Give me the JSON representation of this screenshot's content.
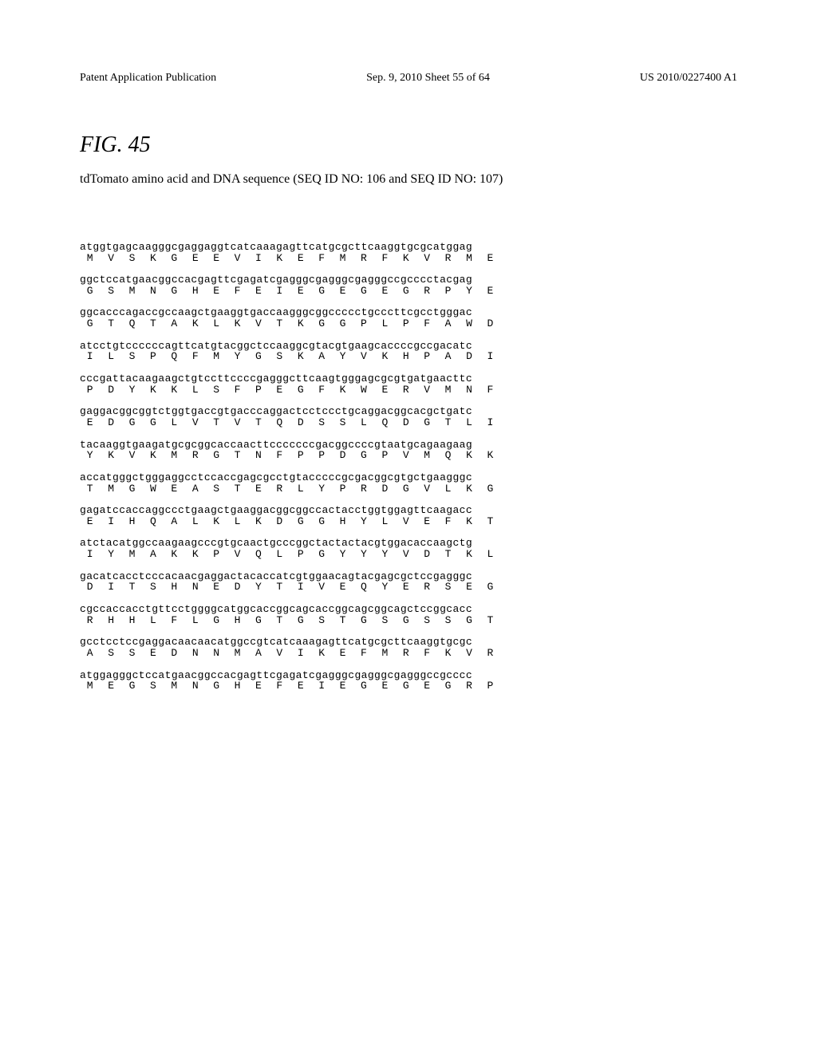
{
  "header": {
    "left": "Patent Application Publication",
    "center": "Sep. 9, 2010  Sheet 55 of 64",
    "right": "US 2010/0227400 A1"
  },
  "figure": {
    "label": "FIG. 45",
    "title": "tdTomato amino acid and DNA sequence (SEQ ID NO: 106 and SEQ ID NO: 107)"
  },
  "sequence": [
    {
      "dna": "atggtgagcaagggcgaggaggtcatcaaagagttcatgcgcttcaaggtgcgcatggag",
      "aa": " M  V  S  K  G  E  E  V  I  K  E  F  M  R  F  K  V  R  M  E"
    },
    {
      "dna": "ggctccatgaacggccacgagttcgagatcgagggcgagggcgagggccgcccctacgag",
      "aa": " G  S  M  N  G  H  E  F  E  I  E  G  E  G  E  G  R  P  Y  E"
    },
    {
      "dna": "ggcacccagaccgccaagctgaaggtgaccaagggcggccccctgcccttcgcctgggac",
      "aa": " G  T  Q  T  A  K  L  K  V  T  K  G  G  P  L  P  F  A  W  D"
    },
    {
      "dna": "atcctgtccccccagttcatgtacggctccaaggcgtacgtgaagcaccccgccgacatc",
      "aa": " I  L  S  P  Q  F  M  Y  G  S  K  A  Y  V  K  H  P  A  D  I"
    },
    {
      "dna": "cccgattacaagaagctgtccttccccgagggcttcaagtgggagcgcgtgatgaacttc",
      "aa": " P  D  Y  K  K  L  S  F  P  E  G  F  K  W  E  R  V  M  N  F"
    },
    {
      "dna": "gaggacggcggtctggtgaccgtgacccaggactcctccctgcaggacggcacgctgatc",
      "aa": " E  D  G  G  L  V  T  V  T  Q  D  S  S  L  Q  D  G  T  L  I"
    },
    {
      "dna": "tacaaggtgaagatgcgcggcaccaacttcccccccgacggccccgtaatgcagaagaag",
      "aa": " Y  K  V  K  M  R  G  T  N  F  P  P  D  G  P  V  M  Q  K  K"
    },
    {
      "dna": "accatgggctgggaggcctccaccgagcgcctgtacccccgcgacggcgtgctgaagggc",
      "aa": " T  M  G  W  E  A  S  T  E  R  L  Y  P  R  D  G  V  L  K  G"
    },
    {
      "dna": "gagatccaccaggccctgaagctgaaggacggcggccactacctggtggagttcaagacc",
      "aa": " E  I  H  Q  A  L  K  L  K  D  G  G  H  Y  L  V  E  F  K  T"
    },
    {
      "dna": "atctacatggccaagaagcccgtgcaactgcccggctactactacgtggacaccaagctg",
      "aa": " I  Y  M  A  K  K  P  V  Q  L  P  G  Y  Y  Y  V  D  T  K  L"
    },
    {
      "dna": "gacatcacctcccacaacgaggactacaccatcgtggaacagtacgagcgctccgagggc",
      "aa": " D  I  T  S  H  N  E  D  Y  T  I  V  E  Q  Y  E  R  S  E  G"
    },
    {
      "dna": "cgccaccacctgttcctggggcatggcaccggcagcaccggcagcggcagctccggcacc",
      "aa": " R  H  H  L  F  L  G  H  G  T  G  S  T  G  S  G  S  S  G  T"
    },
    {
      "dna": "gcctcctccgaggacaacaacatggccgtcatcaaagagttcatgcgcttcaaggtgcgc",
      "aa": " A  S  S  E  D  N  N  M  A  V  I  K  E  F  M  R  F  K  V  R"
    },
    {
      "dna": "atggagggctccatgaacggccacgagttcgagatcgagggcgagggcgagggccgcccc",
      "aa": " M  E  G  S  M  N  G  H  E  F  E  I  E  G  E  G  E  G  R  P"
    }
  ]
}
